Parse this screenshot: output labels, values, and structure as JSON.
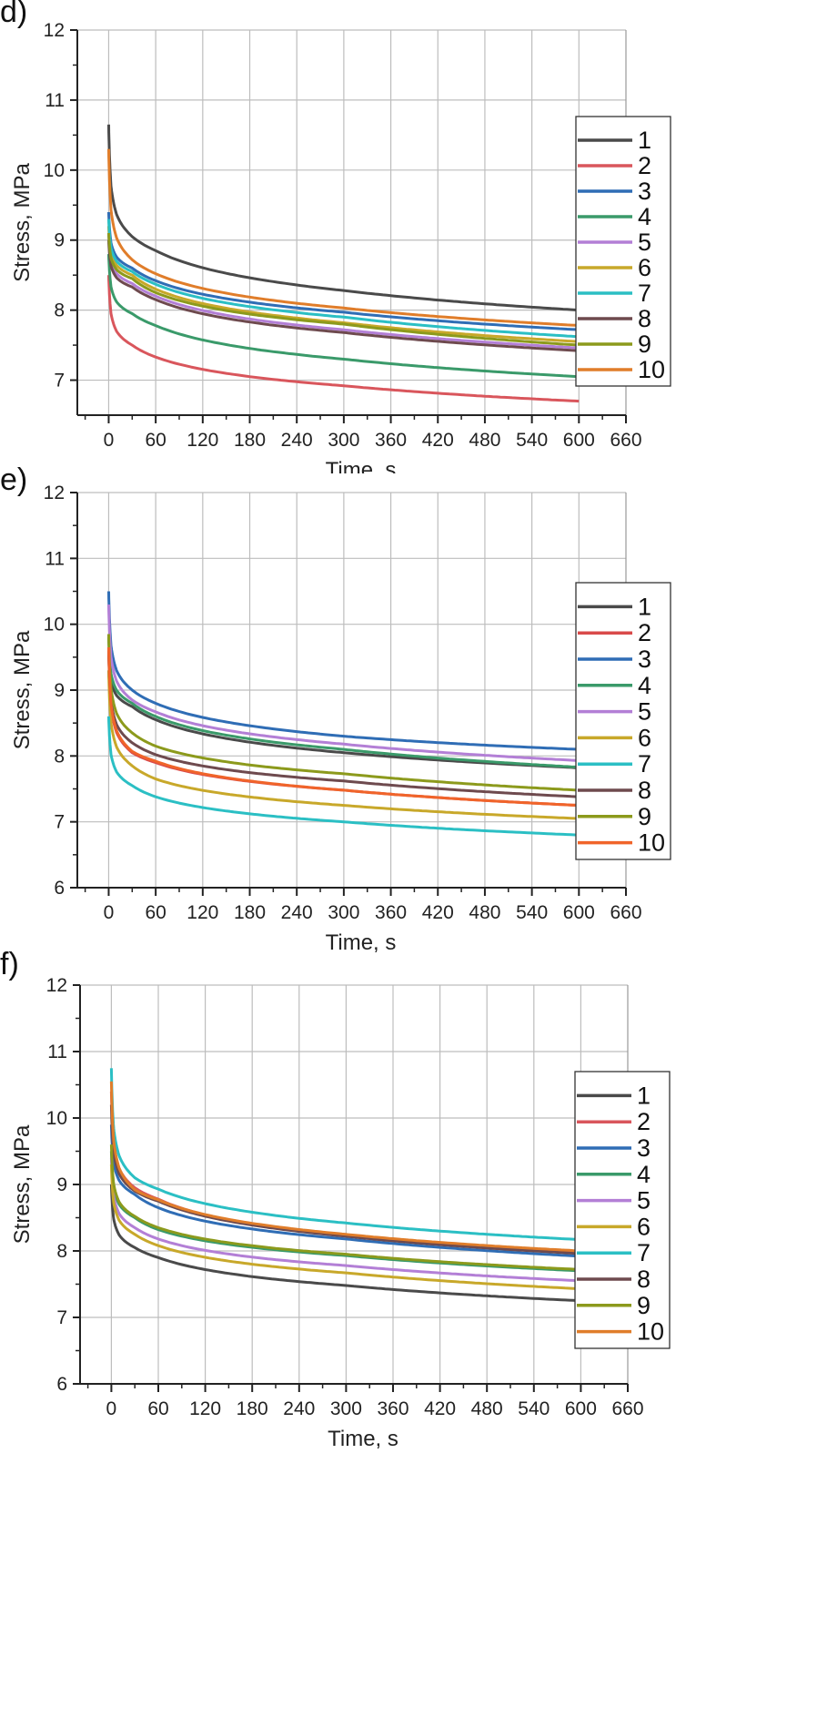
{
  "chart_data": [
    {
      "panel": "d)",
      "type": "line",
      "xlabel": "Time, s",
      "ylabel": "Stress, MPa",
      "xlim": [
        -40,
        660
      ],
      "ylim": [
        6.5,
        12
      ],
      "xticks": [
        0,
        60,
        120,
        180,
        240,
        300,
        360,
        420,
        480,
        540,
        600,
        660
      ],
      "yticks": [
        7,
        8,
        9,
        10,
        11,
        12
      ],
      "grid": true,
      "legend_position": "right",
      "series": [
        {
          "name": "1",
          "color": "#4a4a4a",
          "peak": 10.65,
          "at30": 9.05,
          "at60": 8.85,
          "at300": 8.28,
          "at600": 8.0
        },
        {
          "name": "2",
          "color": "#d9565c",
          "peak": 8.5,
          "at30": 7.5,
          "at60": 7.33,
          "at300": 6.92,
          "at600": 6.7
        },
        {
          "name": "3",
          "color": "#2f6db5",
          "peak": 9.4,
          "at30": 8.6,
          "at60": 8.42,
          "at300": 7.97,
          "at600": 7.72
        },
        {
          "name": "4",
          "color": "#3a9a6a",
          "peak": 8.8,
          "at30": 7.95,
          "at60": 7.78,
          "at300": 7.3,
          "at600": 7.05
        },
        {
          "name": "5",
          "color": "#b37fd6",
          "peak": 9.1,
          "at30": 8.38,
          "at60": 8.2,
          "at300": 7.72,
          "at600": 7.46
        },
        {
          "name": "6",
          "color": "#c8a82a",
          "peak": 9.2,
          "at30": 8.5,
          "at60": 8.3,
          "at300": 7.82,
          "at600": 7.55
        },
        {
          "name": "7",
          "color": "#2bbfc4",
          "peak": 9.3,
          "at30": 8.55,
          "at60": 8.37,
          "at300": 7.9,
          "at600": 7.62
        },
        {
          "name": "8",
          "color": "#6e4a4e",
          "peak": 9.0,
          "at30": 8.33,
          "at60": 8.15,
          "at300": 7.68,
          "at600": 7.42
        },
        {
          "name": "9",
          "color": "#8c9a1c",
          "peak": 9.1,
          "at30": 8.45,
          "at60": 8.25,
          "at300": 7.8,
          "at600": 7.5
        },
        {
          "name": "10",
          "color": "#e07d2a",
          "peak": 10.3,
          "at30": 8.72,
          "at60": 8.52,
          "at300": 8.03,
          "at600": 7.78
        }
      ]
    },
    {
      "panel": "e)",
      "type": "line",
      "xlabel": "Time, s",
      "ylabel": "Stress, MPa",
      "xlim": [
        -40,
        660
      ],
      "ylim": [
        6,
        12
      ],
      "xticks": [
        0,
        60,
        120,
        180,
        240,
        300,
        360,
        420,
        480,
        540,
        600,
        660
      ],
      "yticks": [
        6,
        7,
        8,
        9,
        10,
        11,
        12
      ],
      "grid": true,
      "legend_position": "right",
      "series": [
        {
          "name": "1",
          "color": "#4a4a4a",
          "peak": 9.6,
          "at30": 8.75,
          "at60": 8.55,
          "at300": 8.05,
          "at600": 7.82
        },
        {
          "name": "2",
          "color": "#d94a4a",
          "peak": 9.6,
          "at30": 8.05,
          "at60": 7.9,
          "at300": 7.48,
          "at600": 7.25
        },
        {
          "name": "3",
          "color": "#2f6db5",
          "peak": 10.5,
          "at30": 9.0,
          "at60": 8.8,
          "at300": 8.3,
          "at600": 8.1
        },
        {
          "name": "4",
          "color": "#3a9a6a",
          "peak": 9.8,
          "at30": 8.8,
          "at60": 8.6,
          "at300": 8.1,
          "at600": 7.83
        },
        {
          "name": "5",
          "color": "#b37fd6",
          "peak": 10.3,
          "at30": 8.85,
          "at60": 8.67,
          "at300": 8.18,
          "at600": 7.93
        },
        {
          "name": "6",
          "color": "#c8a82a",
          "peak": 9.3,
          "at30": 7.85,
          "at60": 7.65,
          "at300": 7.25,
          "at600": 7.05
        },
        {
          "name": "7",
          "color": "#2bbfc4",
          "peak": 8.6,
          "at30": 7.55,
          "at60": 7.38,
          "at300": 7.0,
          "at600": 6.8
        },
        {
          "name": "8",
          "color": "#6e4a4e",
          "peak": 9.6,
          "at30": 8.2,
          "at60": 8.02,
          "at300": 7.62,
          "at600": 7.38
        },
        {
          "name": "9",
          "color": "#8c9a1c",
          "peak": 9.85,
          "at30": 8.35,
          "at60": 8.15,
          "at300": 7.73,
          "at600": 7.48
        },
        {
          "name": "10",
          "color": "#f0642a",
          "peak": 9.65,
          "at30": 8.07,
          "at60": 7.92,
          "at300": 7.48,
          "at600": 7.25
        }
      ]
    },
    {
      "panel": "f)",
      "type": "line",
      "xlabel": "Time, s",
      "ylabel": "Stress, MPa",
      "xlim": [
        -40,
        660
      ],
      "ylim": [
        6,
        12
      ],
      "xticks": [
        0,
        60,
        120,
        180,
        240,
        300,
        360,
        420,
        480,
        540,
        600,
        660
      ],
      "yticks": [
        6,
        7,
        8,
        9,
        10,
        11,
        12
      ],
      "grid": true,
      "legend_position": "right",
      "series": [
        {
          "name": "1",
          "color": "#4a4a4a",
          "peak": 9.0,
          "at30": 8.05,
          "at60": 7.9,
          "at300": 7.48,
          "at600": 7.25
        },
        {
          "name": "2",
          "color": "#d9565c",
          "peak": 10.4,
          "at30": 8.95,
          "at60": 8.78,
          "at300": 8.23,
          "at600": 7.98
        },
        {
          "name": "3",
          "color": "#2f6db5",
          "peak": 9.9,
          "at30": 8.85,
          "at60": 8.65,
          "at300": 8.18,
          "at600": 7.92
        },
        {
          "name": "4",
          "color": "#3a9a6a",
          "peak": 9.5,
          "at30": 8.5,
          "at60": 8.32,
          "at300": 7.93,
          "at600": 7.7
        },
        {
          "name": "5",
          "color": "#b37fd6",
          "peak": 9.4,
          "at30": 8.35,
          "at60": 8.18,
          "at300": 7.78,
          "at600": 7.55
        },
        {
          "name": "6",
          "color": "#c8a82a",
          "peak": 9.3,
          "at30": 8.25,
          "at60": 8.08,
          "at300": 7.67,
          "at600": 7.43
        },
        {
          "name": "7",
          "color": "#2bbfc4",
          "peak": 10.75,
          "at30": 9.1,
          "at60": 8.93,
          "at300": 8.42,
          "at600": 8.17
        },
        {
          "name": "8",
          "color": "#6e4a4e",
          "peak": 10.2,
          "at30": 8.9,
          "at60": 8.75,
          "at300": 8.22,
          "at600": 7.96
        },
        {
          "name": "9",
          "color": "#8c9a1c",
          "peak": 9.6,
          "at30": 8.52,
          "at60": 8.35,
          "at300": 7.95,
          "at600": 7.72
        },
        {
          "name": "10",
          "color": "#e07d2a",
          "peak": 10.55,
          "at30": 8.92,
          "at60": 8.77,
          "at300": 8.25,
          "at600": 8.0
        }
      ]
    }
  ]
}
